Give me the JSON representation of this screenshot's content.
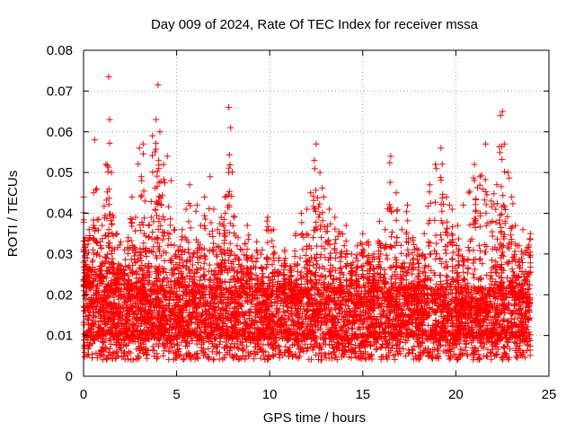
{
  "chart_data": {
    "type": "scatter",
    "title": "Day 009 of 2024, Rate Of TEC Index for receiver mssa",
    "xlabel": "GPS time / hours",
    "ylabel": "ROTI / TECUs",
    "xlim": [
      0,
      25
    ],
    "ylim": [
      0,
      0.08
    ],
    "xticks": [
      "0",
      "5",
      "10",
      "15",
      "20",
      "25"
    ],
    "xtick_values": [
      0,
      5,
      10,
      15,
      20,
      25
    ],
    "yticks": [
      "0",
      "0.01",
      "0.02",
      "0.03",
      "0.04",
      "0.05",
      "0.06",
      "0.07",
      "0.08"
    ],
    "ytick_values": [
      0,
      0.01,
      0.02,
      0.03,
      0.04,
      0.05,
      0.06,
      0.07,
      0.08
    ],
    "grid": true,
    "marker": "plus",
    "color": "#ff0000",
    "series": [
      {
        "x": [
          0.0,
          0.1,
          0.2,
          0.3,
          0.5,
          0.6,
          0.7,
          0.9,
          1.0,
          1.2,
          1.35,
          1.4,
          1.5,
          1.6,
          1.8,
          2.0,
          2.2,
          2.4,
          2.6,
          2.8,
          3.0,
          3.1,
          3.2,
          3.3,
          3.5,
          3.7,
          3.9,
          4.0,
          4.1,
          4.3,
          4.5,
          4.7,
          4.9,
          5.1,
          5.3,
          5.5,
          5.7,
          5.9,
          6.1,
          6.3,
          6.5,
          6.8,
          7.0,
          7.2,
          7.4,
          7.6,
          7.8,
          7.9,
          8.1,
          8.3,
          8.5,
          8.8,
          9.0,
          9.3,
          9.6,
          9.9,
          10.2,
          10.5,
          10.8,
          11.1,
          11.4,
          11.7,
          12.0,
          12.2,
          12.4,
          12.5,
          12.7,
          12.9,
          13.2,
          13.5,
          13.8,
          14.1,
          14.4,
          14.7,
          15.0,
          15.3,
          15.6,
          15.9,
          16.2,
          16.5,
          16.8,
          17.1,
          17.4,
          17.7,
          18.0,
          18.3,
          18.6,
          18.9,
          19.2,
          19.5,
          19.8,
          20.1,
          20.4,
          20.7,
          21.0,
          21.3,
          21.6,
          21.9,
          22.2,
          22.4,
          22.5,
          22.6,
          22.8,
          23.0,
          23.2,
          23.4,
          23.6,
          23.8,
          24.0
        ],
        "y": [
          0.044,
          0.034,
          0.029,
          0.036,
          0.031,
          0.058,
          0.046,
          0.033,
          0.037,
          0.052,
          0.0735,
          0.063,
          0.05,
          0.039,
          0.035,
          0.033,
          0.031,
          0.034,
          0.044,
          0.039,
          0.056,
          0.049,
          0.057,
          0.043,
          0.037,
          0.059,
          0.063,
          0.0715,
          0.06,
          0.052,
          0.054,
          0.048,
          0.036,
          0.031,
          0.036,
          0.041,
          0.047,
          0.03,
          0.042,
          0.037,
          0.044,
          0.049,
          0.041,
          0.036,
          0.039,
          0.044,
          0.066,
          0.061,
          0.039,
          0.034,
          0.031,
          0.037,
          0.029,
          0.033,
          0.031,
          0.039,
          0.036,
          0.029,
          0.031,
          0.027,
          0.035,
          0.04,
          0.041,
          0.045,
          0.053,
          0.057,
          0.05,
          0.044,
          0.041,
          0.039,
          0.035,
          0.037,
          0.03,
          0.032,
          0.035,
          0.033,
          0.03,
          0.038,
          0.036,
          0.054,
          0.045,
          0.036,
          0.042,
          0.034,
          0.031,
          0.035,
          0.047,
          0.052,
          0.056,
          0.044,
          0.041,
          0.037,
          0.042,
          0.045,
          0.052,
          0.049,
          0.057,
          0.043,
          0.047,
          0.064,
          0.065,
          0.057,
          0.05,
          0.044,
          0.037,
          0.032,
          0.036,
          0.031,
          0.035
        ]
      }
    ],
    "band": {
      "low_typical": 0.009,
      "high_typical": 0.022,
      "min": 0.004
    }
  }
}
